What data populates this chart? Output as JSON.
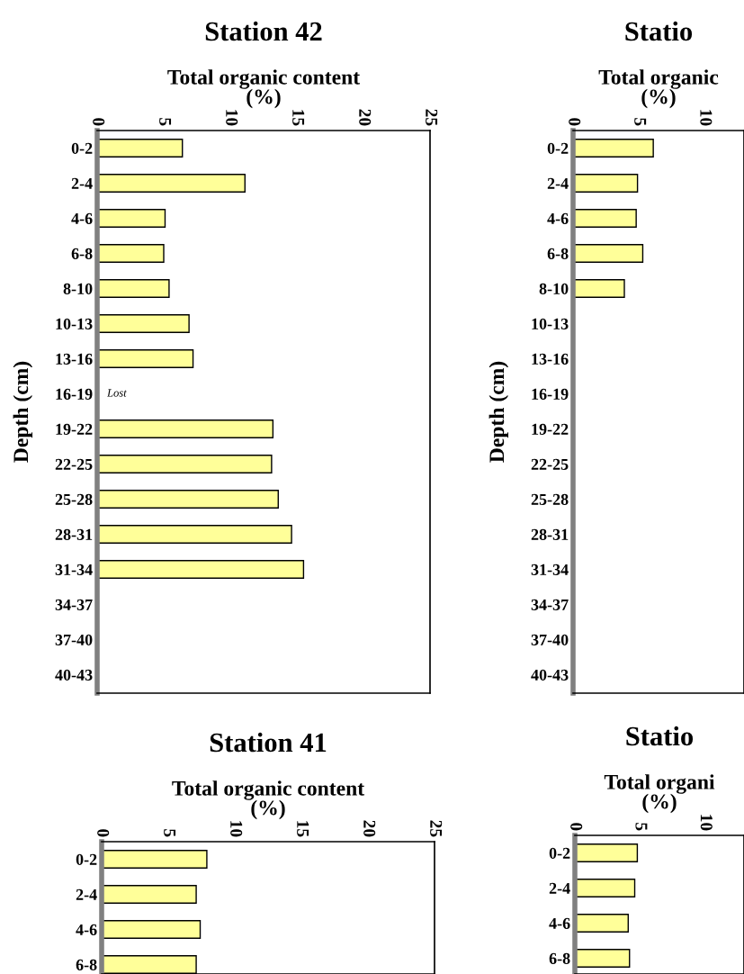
{
  "chart_data": [
    {
      "type": "bar",
      "orientation": "horizontal",
      "title": "Station 42",
      "xlabel": "Total organic content\n(%)",
      "ylabel": "Depth (cm)",
      "categories": [
        "0-2",
        "2-4",
        "4-6",
        "6-8",
        "8-10",
        "10-13",
        "13-16",
        "16-19",
        "19-22",
        "22-25",
        "25-28",
        "28-31",
        "31-34",
        "34-37",
        "37-40",
        "40-43"
      ],
      "series": [
        {
          "color": "#ffff99",
          "values": [
            6.4,
            11.1,
            5.1,
            5.0,
            5.4,
            6.9,
            7.2,
            null,
            13.2,
            13.1,
            13.6,
            14.6,
            15.5,
            null,
            null,
            null
          ]
        }
      ],
      "xlim": [
        0,
        25
      ],
      "xticks": [
        0,
        5,
        10,
        15,
        20,
        25
      ],
      "grid": false,
      "legend": false,
      "annotations": [
        "Lost"
      ]
    },
    {
      "type": "bar",
      "orientation": "horizontal",
      "title": "Statio",
      "xlabel": "Total organic\n(%)",
      "ylabel": "Depth (cm)",
      "categories": [
        "0-2",
        "2-4",
        "4-6",
        "6-8",
        "8-10",
        "10-13",
        "13-16",
        "16-19",
        "19-22",
        "22-25",
        "25-28",
        "28-31",
        "31-34",
        "34-37",
        "37-40",
        "40-43"
      ],
      "series": [
        {
          "color": "#ffff99",
          "values": [
            6.1,
            4.9,
            4.8,
            5.3,
            3.9,
            null,
            null,
            null,
            null,
            null,
            null,
            null,
            null,
            null,
            null,
            null
          ]
        }
      ],
      "xlim": [
        0,
        13
      ],
      "xticks": [
        0,
        5,
        10
      ],
      "grid": false,
      "legend": false
    },
    {
      "type": "bar",
      "orientation": "horizontal",
      "title": "Station 41",
      "xlabel": "Total organic content\n(%)",
      "categories": [
        "0-2",
        "2-4",
        "4-6",
        "6-8"
      ],
      "series": [
        {
          "color": "#ffff99",
          "values": [
            7.9,
            7.1,
            7.4,
            7.1
          ]
        }
      ],
      "xlim": [
        0,
        25
      ],
      "xticks": [
        0,
        5,
        10,
        15,
        20,
        25
      ],
      "grid": false,
      "legend": false
    },
    {
      "type": "bar",
      "orientation": "horizontal",
      "title": "Statio",
      "xlabel": "Total organi\n(%)",
      "categories": [
        "0-2",
        "2-4",
        "4-6",
        "6-8"
      ],
      "series": [
        {
          "color": "#ffff99",
          "values": [
            4.8,
            4.6,
            4.1,
            4.2
          ]
        }
      ],
      "xlim": [
        0,
        13
      ],
      "xticks": [
        0,
        5,
        10
      ],
      "grid": false,
      "legend": false
    }
  ]
}
